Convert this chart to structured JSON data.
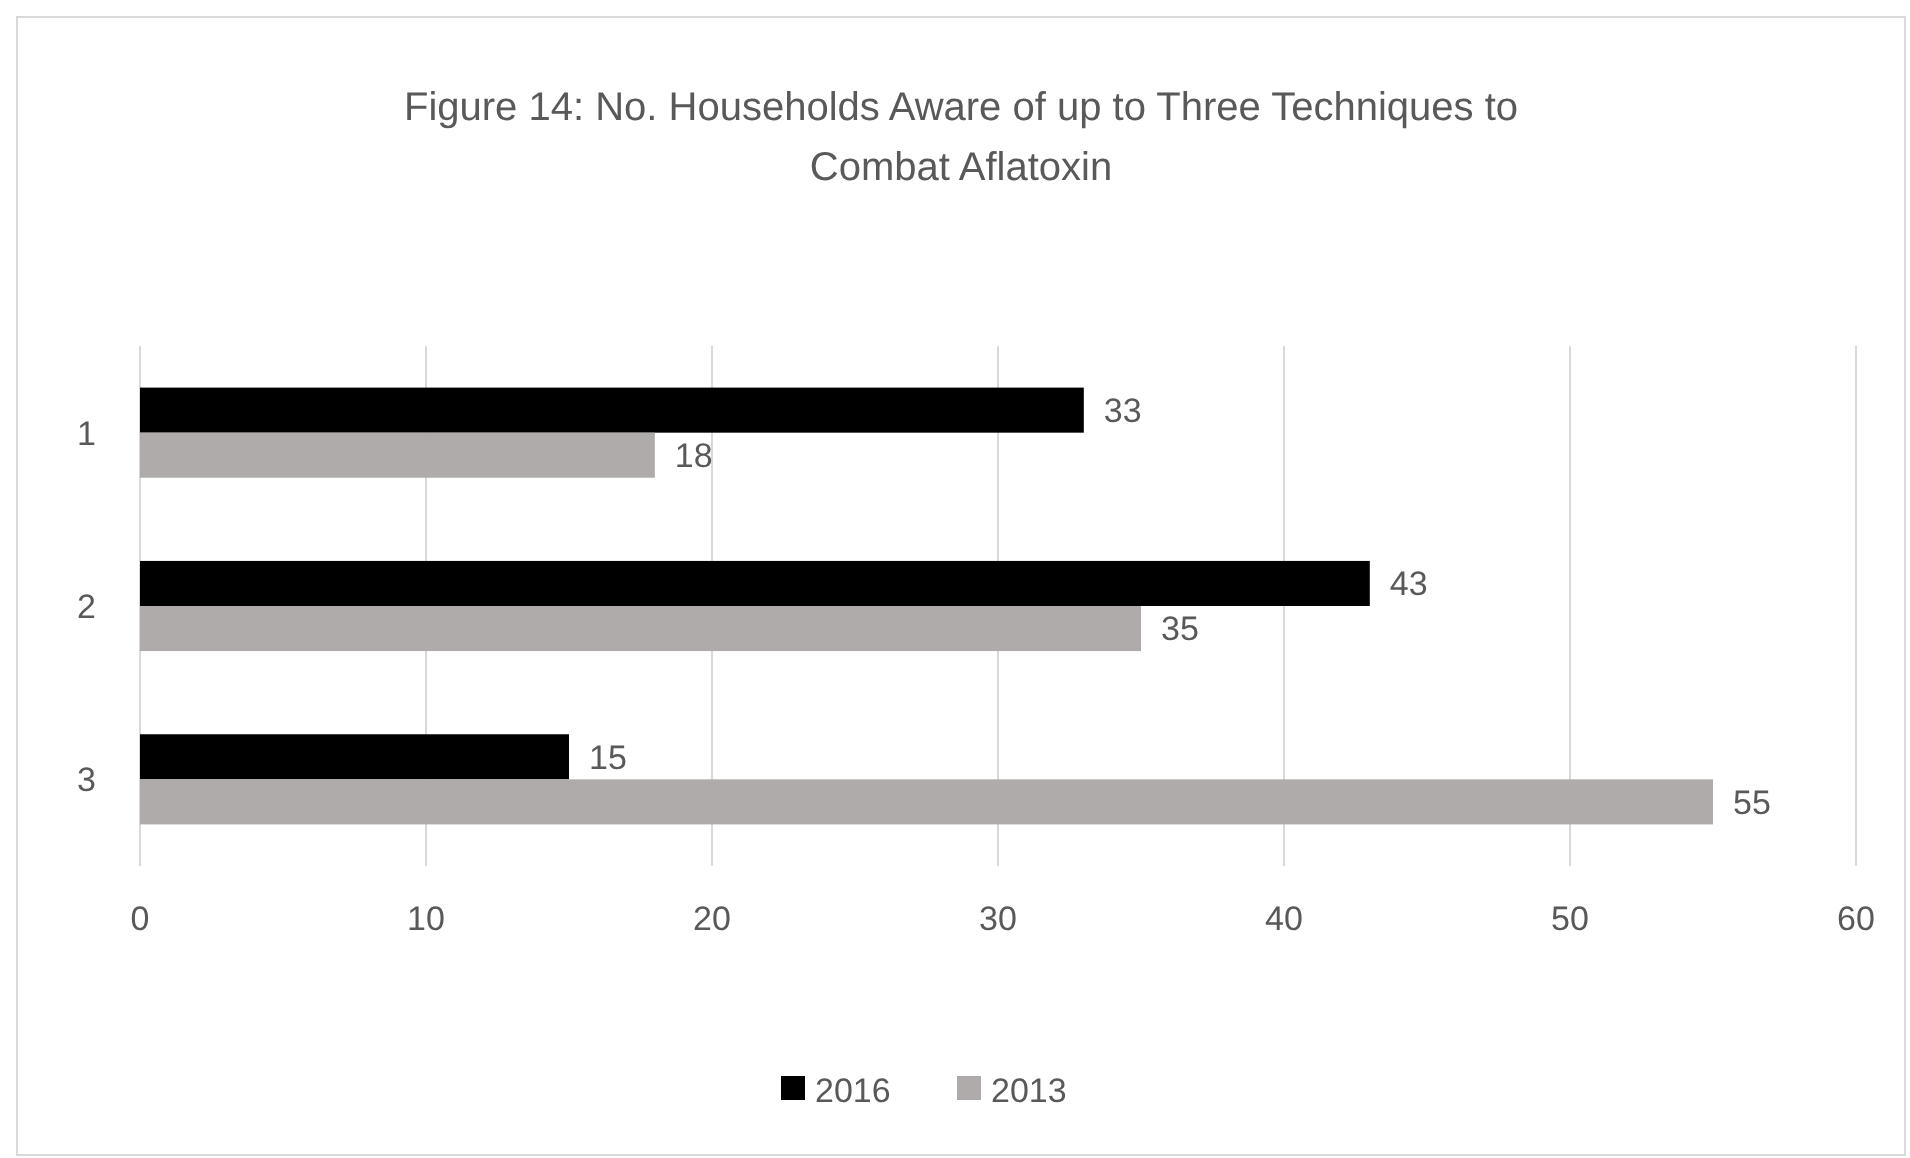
{
  "chart_data": {
    "type": "bar",
    "orientation": "horizontal",
    "title": "Figure 14: No. Households Aware of up to Three Techniques to Combat Aflatoxin",
    "categories": [
      "1",
      "2",
      "3"
    ],
    "series": [
      {
        "name": "2016",
        "color": "#000000",
        "values": [
          33,
          43,
          15
        ]
      },
      {
        "name": "2013",
        "color": "#afabab",
        "values": [
          18,
          35,
          55
        ]
      }
    ],
    "xlim": [
      0,
      60
    ],
    "xticks": [
      0,
      10,
      20,
      30,
      40,
      50,
      60
    ],
    "grid": "x",
    "data_labels": true,
    "legend": "bottom"
  }
}
